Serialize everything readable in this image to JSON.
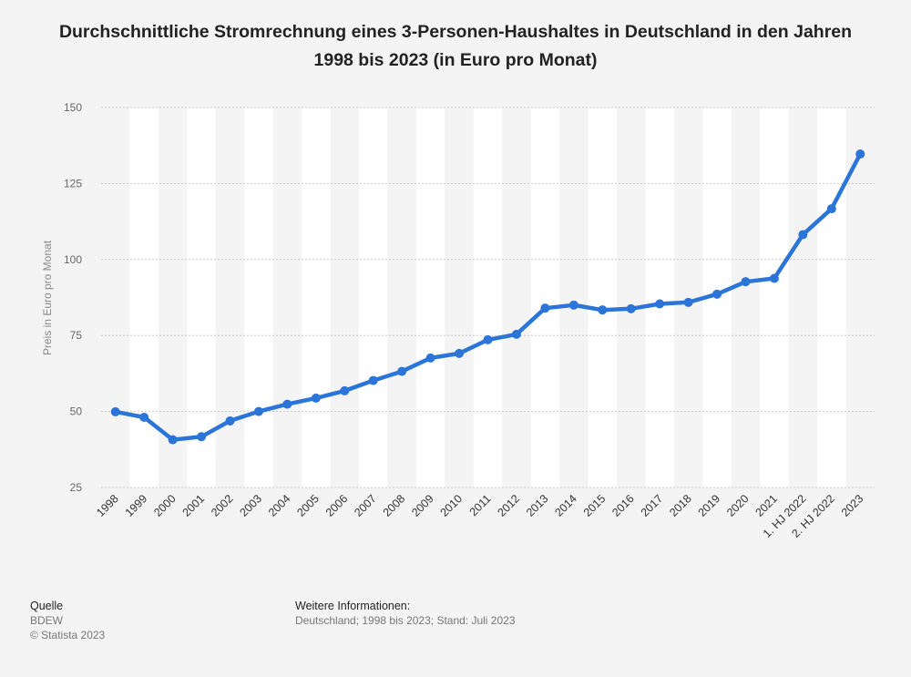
{
  "chart_data": {
    "type": "line",
    "title": "Durchschnittliche Stromrechnung eines 3-Personen-Haushaltes in Deutschland in den Jahren 1998 bis 2023 (in Euro pro Monat)",
    "ylabel": "Preis in Euro pro Monat",
    "xlabel": "",
    "categories": [
      "1998",
      "1999",
      "2000",
      "2001",
      "2002",
      "2003",
      "2004",
      "2005",
      "2006",
      "2007",
      "2008",
      "2009",
      "2010",
      "2011",
      "2012",
      "2013",
      "2014",
      "2015",
      "2016",
      "2017",
      "2018",
      "2019",
      "2020",
      "2021",
      "1. HJ 2022",
      "2. HJ 2022",
      "2023"
    ],
    "series": [
      {
        "values": [
          49.9,
          48.1,
          40.7,
          41.7,
          46.9,
          50.0,
          52.4,
          54.4,
          56.8,
          60.2,
          63.2,
          67.6,
          69.1,
          73.6,
          75.4,
          84.0,
          85.0,
          83.4,
          83.8,
          85.4,
          85.9,
          88.6,
          92.7,
          93.8,
          108.2,
          116.7,
          134.7
        ]
      }
    ],
    "ylim": [
      25,
      150
    ],
    "yticks": [
      25,
      50,
      75,
      100,
      125,
      150
    ],
    "grid": true,
    "color": "#2b74d8"
  },
  "footer": {
    "source_heading": "Quelle",
    "source": "BDEW",
    "copyright": "© Statista 2023",
    "info_heading": "Weitere Informationen:",
    "info": "Deutschland; 1998 bis 2023; Stand: Juli 2023"
  }
}
